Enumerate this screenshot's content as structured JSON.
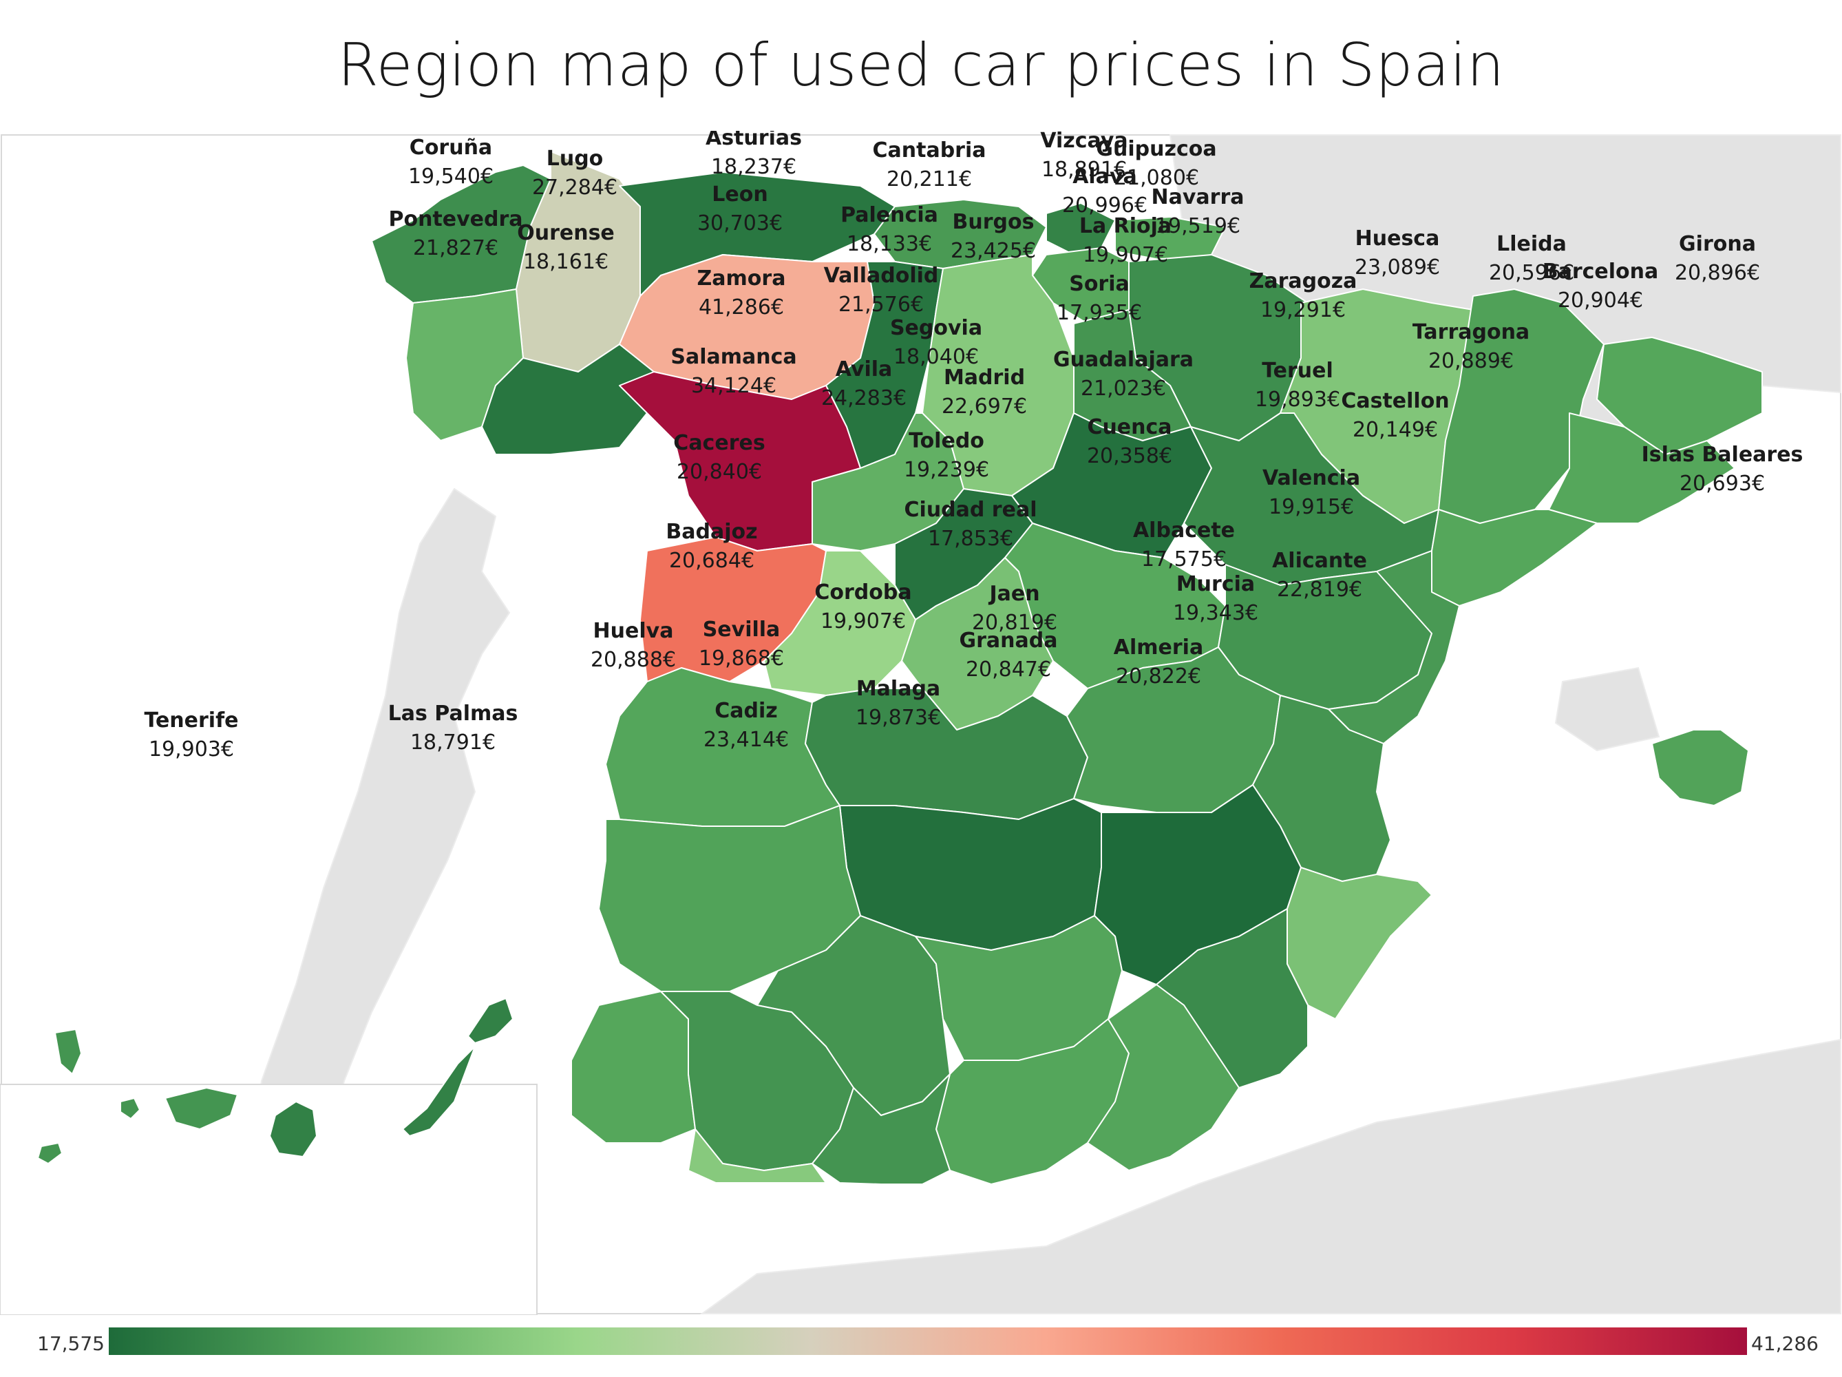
{
  "title": "Region map of used car prices in Spain",
  "currency_suffix": "€",
  "color_scale": {
    "min": 17575,
    "max": 41286,
    "min_label": "17,575",
    "max_label": "41,286",
    "stops": [
      "#1e6b3a",
      "#56a85c",
      "#9ad68a",
      "#d6d0bd",
      "#f9a890",
      "#ef6a55",
      "#dc3a45",
      "#a50f3c"
    ]
  },
  "regions": [
    {
      "name": "Coruña",
      "value": 19540,
      "value_label": "19,540€"
    },
    {
      "name": "Lugo",
      "value": 27284,
      "value_label": "27,284€"
    },
    {
      "name": "Asturias",
      "value": 18237,
      "value_label": "18,237€"
    },
    {
      "name": "Cantabria",
      "value": 20211,
      "value_label": "20,211€"
    },
    {
      "name": "Vizcaya",
      "value": 18891,
      "value_label": "18,891€"
    },
    {
      "name": "Guipuzcoa",
      "value": 21080,
      "value_label": "21,080€"
    },
    {
      "name": "Alava",
      "value": 20996,
      "value_label": "20,996€"
    },
    {
      "name": "Navarra",
      "value": 19519,
      "value_label": "19,519€"
    },
    {
      "name": "Pontevedra",
      "value": 21827,
      "value_label": "21,827€"
    },
    {
      "name": "Ourense",
      "value": 18161,
      "value_label": "18,161€"
    },
    {
      "name": "Leon",
      "value": 30703,
      "value_label": "30,703€"
    },
    {
      "name": "Palencia",
      "value": 18133,
      "value_label": "18,133€"
    },
    {
      "name": "Burgos",
      "value": 23425,
      "value_label": "23,425€"
    },
    {
      "name": "La Rioja",
      "value": 19907,
      "value_label": "19,907€"
    },
    {
      "name": "Huesca",
      "value": 23089,
      "value_label": "23,089€"
    },
    {
      "name": "Lleida",
      "value": 20596,
      "value_label": "20,596€"
    },
    {
      "name": "Girona",
      "value": 20896,
      "value_label": "20,896€"
    },
    {
      "name": "Barcelona",
      "value": 20904,
      "value_label": "20,904€"
    },
    {
      "name": "Zamora",
      "value": 41286,
      "value_label": "41,286€"
    },
    {
      "name": "Valladolid",
      "value": 21576,
      "value_label": "21,576€"
    },
    {
      "name": "Soria",
      "value": 17935,
      "value_label": "17,935€"
    },
    {
      "name": "Zaragoza",
      "value": 19291,
      "value_label": "19,291€"
    },
    {
      "name": "Segovia",
      "value": 18040,
      "value_label": "18,040€"
    },
    {
      "name": "Tarragona",
      "value": 20889,
      "value_label": "20,889€"
    },
    {
      "name": "Salamanca",
      "value": 34124,
      "value_label": "34,124€"
    },
    {
      "name": "Avila",
      "value": 24283,
      "value_label": "24,283€"
    },
    {
      "name": "Madrid",
      "value": 22697,
      "value_label": "22,697€"
    },
    {
      "name": "Guadalajara",
      "value": 21023,
      "value_label": "21,023€"
    },
    {
      "name": "Teruel",
      "value": 19893,
      "value_label": "19,893€"
    },
    {
      "name": "Castellon",
      "value": 20149,
      "value_label": "20,149€"
    },
    {
      "name": "Caceres",
      "value": 20840,
      "value_label": "20,840€"
    },
    {
      "name": "Toledo",
      "value": 19239,
      "value_label": "19,239€"
    },
    {
      "name": "Cuenca",
      "value": 20358,
      "value_label": "20,358€"
    },
    {
      "name": "Islas Baleares",
      "value": 20693,
      "value_label": "20,693€"
    },
    {
      "name": "Valencia",
      "value": 19915,
      "value_label": "19,915€"
    },
    {
      "name": "Ciudad real",
      "value": 17853,
      "value_label": "17,853€"
    },
    {
      "name": "Albacete",
      "value": 17575,
      "value_label": "17,575€"
    },
    {
      "name": "Badajoz",
      "value": 20684,
      "value_label": "20,684€"
    },
    {
      "name": "Alicante",
      "value": 22819,
      "value_label": "22,819€"
    },
    {
      "name": "Murcia",
      "value": 19343,
      "value_label": "19,343€"
    },
    {
      "name": "Cordoba",
      "value": 19907,
      "value_label": "19,907€"
    },
    {
      "name": "Jaen",
      "value": 20819,
      "value_label": "20,819€"
    },
    {
      "name": "Huelva",
      "value": 20888,
      "value_label": "20,888€"
    },
    {
      "name": "Sevilla",
      "value": 19868,
      "value_label": "19,868€"
    },
    {
      "name": "Granada",
      "value": 20847,
      "value_label": "20,847€"
    },
    {
      "name": "Almeria",
      "value": 20822,
      "value_label": "20,822€"
    },
    {
      "name": "Malaga",
      "value": 19873,
      "value_label": "19,873€"
    },
    {
      "name": "Cadiz",
      "value": 23414,
      "value_label": "23,414€"
    },
    {
      "name": "Tenerife",
      "value": 19903,
      "value_label": "19,903€"
    },
    {
      "name": "Las Palmas",
      "value": 18791,
      "value_label": "18,791€"
    }
  ]
}
